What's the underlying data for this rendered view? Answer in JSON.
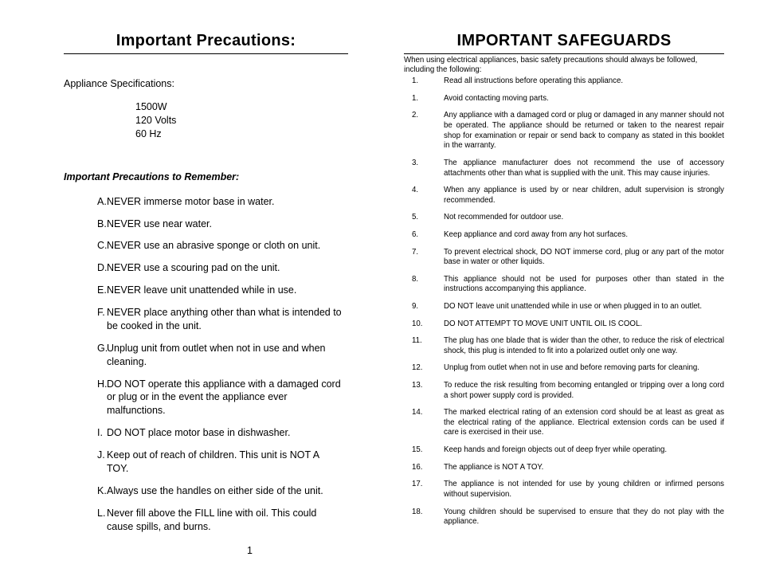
{
  "left": {
    "title": "Important Precautions:",
    "spec_label": "Appliance Specifications:",
    "specs": [
      "1500W",
      "120 Volts",
      " 60 Hz"
    ],
    "subhead": "Important Precautions to Remember:",
    "items": [
      {
        "mark": "A.",
        "text": "NEVER immerse motor base in water."
      },
      {
        "mark": "B.",
        "text": "NEVER use near water."
      },
      {
        "mark": "C.",
        "text": "NEVER use an abrasive sponge or cloth on unit."
      },
      {
        "mark": "D.",
        "text": "NEVER use a scouring pad on the unit."
      },
      {
        "mark": "E.",
        "text": "NEVER leave unit unattended while in use."
      },
      {
        "mark": "F.",
        "text": "NEVER place anything other than what is intended to be cooked in the unit."
      },
      {
        "mark": "G.",
        "text": "Unplug unit from outlet when not in use and when cleaning."
      },
      {
        "mark": "H.",
        "text": "DO NOT operate this appliance with a damaged cord or plug or in the event the appliance ever malfunctions."
      },
      {
        "mark": "I.",
        "text": "DO NOT place motor base in dishwasher."
      },
      {
        "mark": "J.",
        "text": "Keep out of reach of children.  This unit is NOT A TOY."
      },
      {
        "mark": "K.",
        "text": "Always use the handles on either side of the unit."
      },
      {
        "mark": "L.",
        "text": "Never fill above the FILL line with oil.  This could cause spills, and burns."
      }
    ],
    "page_number": "1"
  },
  "right": {
    "title": "IMPORTANT SAFEGUARDS",
    "intro": "When using electrical appliances, basic safety precautions should always be followed, including the following:",
    "items": [
      {
        "mark": "1.",
        "text": "Read all instructions before operating this appliance."
      },
      {
        "mark": "1.",
        "text": "Avoid contacting moving parts."
      },
      {
        "mark": "2.",
        "text": "Any appliance with a damaged cord or plug or damaged in any manner should not be operated. The appliance should be returned or taken to the nearest repair shop for examination or repair or send back to company as stated in this booklet in the warranty."
      },
      {
        "mark": "3.",
        "text": "The appliance manufacturer does not recommend the use of accessory attachments other than what is supplied with the unit.  This may cause injuries."
      },
      {
        "mark": "4.",
        "text": "When any appliance is used by or near children, adult supervision is strongly recommended."
      },
      {
        "mark": "5.",
        "text": "Not recommended for outdoor use."
      },
      {
        "mark": "6.",
        "text": "Keep appliance and cord away from any hot surfaces."
      },
      {
        "mark": "7.",
        "text": "To prevent electrical shock, DO NOT immerse cord, plug or any part of the motor base in water or other liquids."
      },
      {
        "mark": "8.",
        "text": "This appliance should not be used for purposes other than stated in the instructions accompanying this appliance."
      },
      {
        "mark": "9.",
        "text": "DO NOT leave unit unattended while in use or when plugged in to an outlet."
      },
      {
        "mark": "10.",
        "text": "DO NOT ATTEMPT TO MOVE UNIT UNTIL OIL IS COOL."
      },
      {
        "mark": "11.",
        "text": "The plug has one blade that is wider than the other, to reduce the risk of electrical shock, this plug is intended to fit into a polarized outlet only one way."
      },
      {
        "mark": "12.",
        "text": "Unplug from outlet when not in use and before removing parts for cleaning."
      },
      {
        "mark": "13.",
        "text": "To reduce the risk resulting from becoming entangled or tripping over a long cord a short power supply cord is provided."
      },
      {
        "mark": "14.",
        "text": "The marked electrical rating of an extension cord should be at least as great as the electrical rating of the appliance. Electrical extension cords can be used if care is exercised in their use."
      },
      {
        "mark": "15.",
        "text": "Keep hands and foreign objects out of deep fryer while operating."
      },
      {
        "mark": "16.",
        "text": "The appliance is NOT A TOY."
      },
      {
        "mark": "17.",
        "text": "The appliance is not intended for use by young children or infirmed persons without supervision."
      },
      {
        "mark": "18.",
        "text": "Young children should be supervised to ensure that they do not play with the appliance."
      }
    ]
  },
  "colors": {
    "text": "#000000",
    "background": "#ffffff",
    "rule": "#000000"
  }
}
